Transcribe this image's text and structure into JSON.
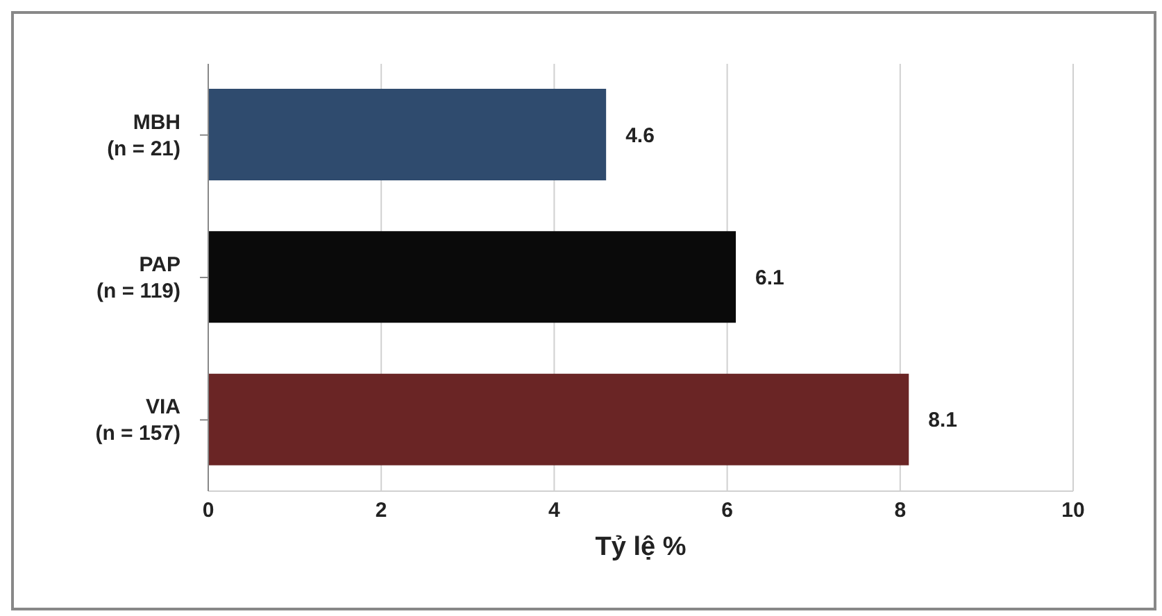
{
  "chart_data": {
    "type": "bar",
    "orientation": "horizontal",
    "categories": [
      "MBH\n(n = 21)",
      "PAP\n(n = 119)",
      "VIA\n(n = 157)"
    ],
    "values": [
      4.6,
      6.1,
      8.1
    ],
    "colors": [
      "#2f4b6e",
      "#0a0a0a",
      "#6a2525"
    ],
    "xlim": [
      0,
      10
    ],
    "xticks": [
      0,
      2,
      4,
      6,
      8,
      10
    ],
    "xlabel": "Tỷ lệ %",
    "grid": "x",
    "data_labels": true
  }
}
